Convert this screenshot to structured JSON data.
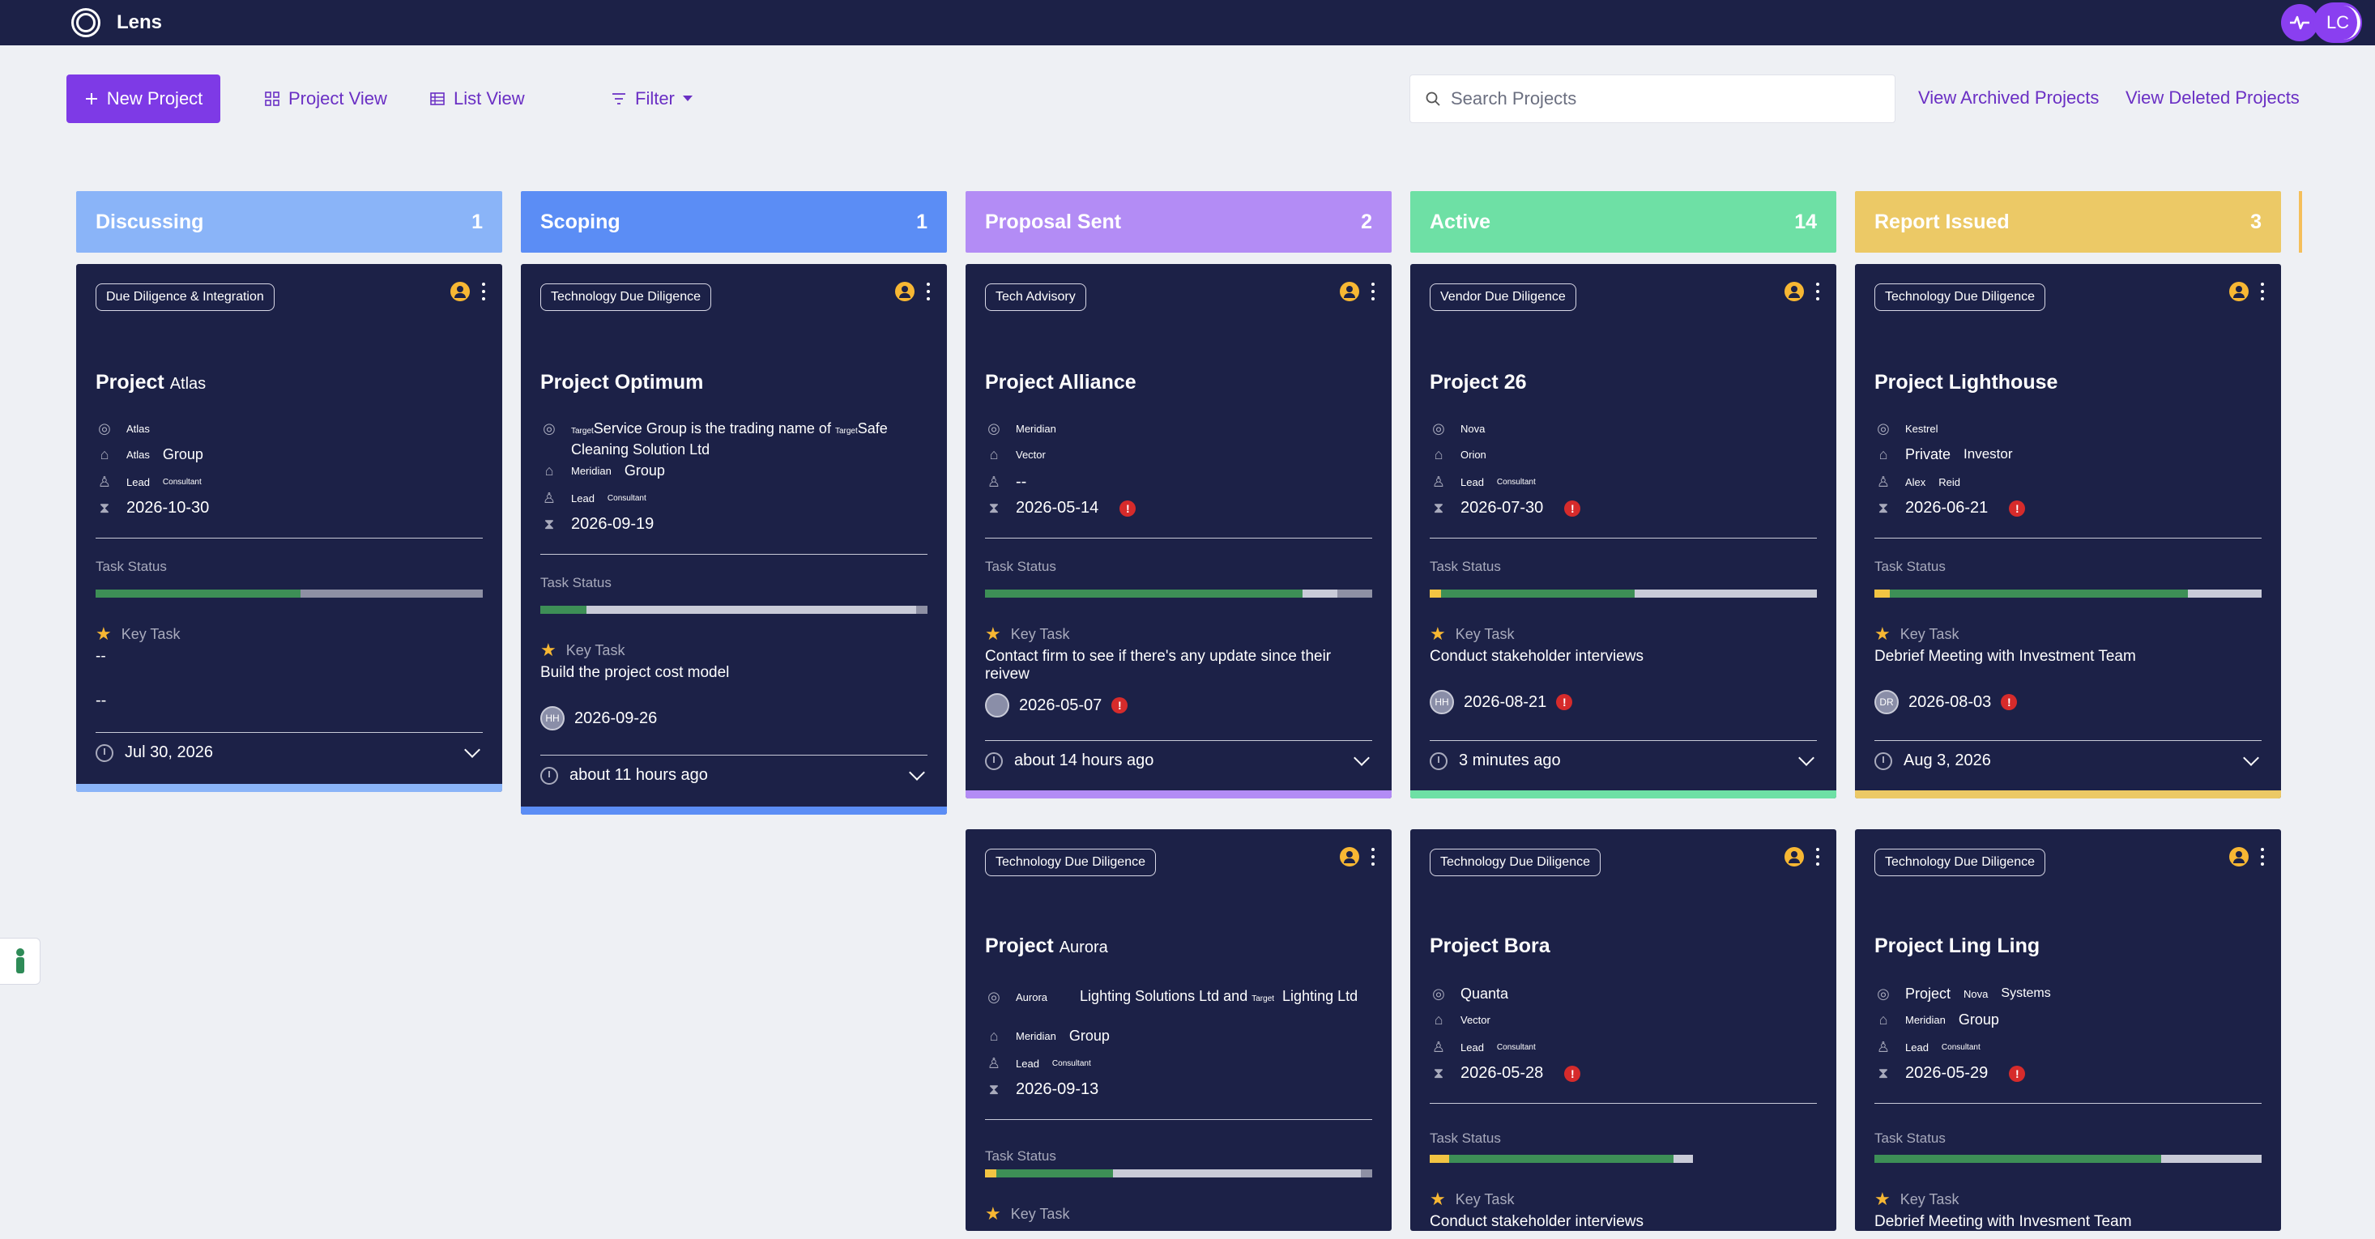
{
  "app": {
    "brand": "Lens",
    "avatar_initials": "LC"
  },
  "toolbar": {
    "new_project": "New Project",
    "project_view": "Project View",
    "list_view": "List View",
    "filter": "Filter",
    "search_placeholder": "Search Projects",
    "view_archived": "View Archived Projects",
    "view_deleted": "View Deleted Projects"
  },
  "columns": [
    {
      "name": "Discussing",
      "count": "1",
      "color": "#8ab4f8"
    },
    {
      "name": "Scoping",
      "count": "1",
      "color": "#5b8df5"
    },
    {
      "name": "Proposal Sent",
      "count": "2",
      "color": "#b38cf5"
    },
    {
      "name": "Active",
      "count": "14",
      "color": "#6ee0a5"
    },
    {
      "name": "Report Issued",
      "count": "3",
      "color": "#ecc966"
    }
  ],
  "cards": {
    "atlas": {
      "tag": "Due Diligence & Integration",
      "title": "Project",
      "title_sub": "Atlas",
      "target": "Atlas",
      "client_a": "Atlas",
      "client_b": "Group",
      "lead_a": "Lead",
      "lead_b": "Consultant",
      "deadline": "2026-10-30",
      "task_status_label": "Task Status",
      "progress": {
        "done": 0.53,
        "rest": 0.47
      },
      "key_task_label": "Key Task",
      "key_task": "--",
      "key_task_date": "--",
      "updated": "Jul 30, 2026"
    },
    "optimum": {
      "tag": "Technology Due Diligence",
      "title": "Project Optimum",
      "target_a": "Target",
      "target_b": "Service Group is the trading name of",
      "target_c": "Target",
      "target_d": "Safe",
      "target_e": "Cleaning Solution Ltd",
      "client_a": "Meridian",
      "client_b": "Group",
      "lead_a": "Lead",
      "lead_b": "Consultant",
      "deadline": "2026-09-19",
      "task_status_label": "Task Status",
      "progress": {
        "done": 0.12,
        "rest": 0.85,
        "other": 0.03
      },
      "key_task_label": "Key Task",
      "key_task": "Build the project cost model",
      "assignee": "HH",
      "key_task_date": "2026-09-26",
      "updated": "about 11 hours ago"
    },
    "alliance": {
      "tag": "Tech Advisory",
      "title": "Project Alliance",
      "target": "Meridian",
      "client": "Vector",
      "lead": "--",
      "deadline": "2026-05-14",
      "task_status_label": "Task Status",
      "progress": {
        "done": 0.82,
        "rest": 0.09,
        "other": 0.09
      },
      "key_task_label": "Key Task",
      "key_task": "Contact firm to see if there's any update since their reivew",
      "key_task_date": "2026-05-07",
      "updated": "about 14 hours ago"
    },
    "p26": {
      "tag": "Vendor Due Diligence",
      "title": "Project 26",
      "target": "Nova",
      "client": "Orion",
      "lead_a": "Lead",
      "lead_b": "Consultant",
      "deadline": "2026-07-30",
      "task_status_label": "Task Status",
      "progress": {
        "yellow": 0.03,
        "done": 0.5,
        "rest": 0.47
      },
      "key_task_label": "Key Task",
      "key_task": "Conduct stakeholder interviews",
      "assignee": "HH",
      "key_task_date": "2026-08-21",
      "updated": "3 minutes ago"
    },
    "lighthouse": {
      "tag": "Technology Due Diligence",
      "title": "Project Lighthouse",
      "target": "Kestrel",
      "client_a": "Private",
      "client_b": "Investor",
      "lead_a": "Alex",
      "lead_b": "Reid",
      "deadline": "2026-06-21",
      "task_status_label": "Task Status",
      "progress": {
        "yellow": 0.04,
        "done": 0.77,
        "rest": 0.19
      },
      "key_task_label": "Key Task",
      "key_task": "Debrief Meeting with Investment Team",
      "assignee": "DR",
      "key_task_date": "2026-08-03",
      "updated": "Aug 3, 2026"
    },
    "aurora": {
      "tag": "Technology Due Diligence",
      "title": "Project",
      "title_sub": "Aurora",
      "target_a": "Aurora",
      "target_b": "Lighting Solutions Ltd and",
      "target_c": "Target",
      "target_d": "Lighting",
      "target_e": "Ltd",
      "client_a": "Meridian",
      "client_b": "Group",
      "lead_a": "Lead",
      "lead_b": "Consultant",
      "deadline": "2026-09-13",
      "task_status_label": "Task Status",
      "progress": {
        "yellow": 0.03,
        "done": 0.3,
        "rest": 0.64,
        "other": 0.03
      },
      "key_task_label": "Key Task"
    },
    "bora": {
      "tag": "Technology Due Diligence",
      "title": "Project Bora",
      "target": "Quanta",
      "client": "Vector",
      "lead_a": "Lead",
      "lead_b": "Consultant",
      "deadline": "2026-05-28",
      "task_status_label": "Task Status",
      "progress": {
        "yellow": 0.05,
        "done": 0.58,
        "rest": 0.05
      },
      "key_task_label": "Key Task",
      "key_task": "Conduct stakeholder interviews"
    },
    "lingling": {
      "tag": "Technology Due Diligence",
      "title": "Project Ling Ling",
      "target_a": "Project",
      "target_b": "Nova",
      "target_c": "Systems",
      "client_a": "Meridian",
      "client_b": "Group",
      "lead_a": "Lead",
      "lead_b": "Consultant",
      "deadline": "2026-05-29",
      "task_status_label": "Task Status",
      "progress": {
        "done": 0.74,
        "rest": 0.26
      },
      "key_task_label": "Key Task",
      "key_task": "Debrief Meeting with Invesment Team"
    }
  },
  "colors": {
    "topbar": "#1c2147",
    "accent": "#7e3ae6",
    "card": "#1c2147",
    "progress_done": "#3d8f56",
    "progress_rest": "#c9cbd8",
    "progress_other": "#8e90a4",
    "progress_yellow": "#f2c443",
    "alert": "#d62b2b"
  },
  "icons": {
    "logo": "logo-icon",
    "pulse": "pulse-icon",
    "plus": "plus-icon",
    "grid": "grid-icon",
    "list": "list-icon",
    "filter": "filter-icon",
    "search": "search-icon",
    "owner": "user-circle-icon",
    "more": "more-vertical-icon",
    "target": "target-icon",
    "building": "building-icon",
    "user": "user-icon",
    "hourglass": "hourglass-icon",
    "star": "star-icon",
    "clock": "clock-icon",
    "chevron": "chevron-down-icon",
    "feedback": "feedback-icon"
  }
}
